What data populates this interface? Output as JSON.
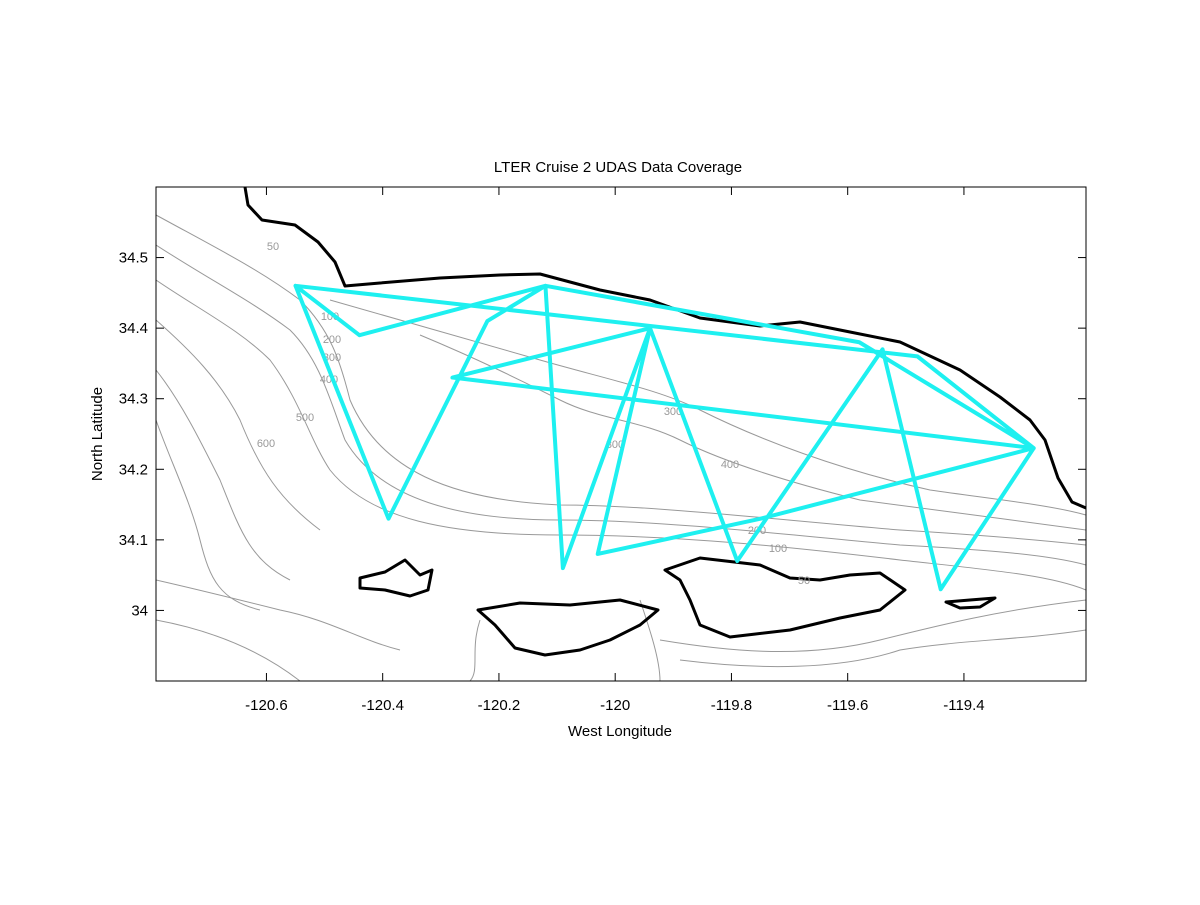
{
  "chart_data": {
    "type": "line",
    "title": "LTER Cruise 2 UDAS Data Coverage",
    "x_label": "West Longitude",
    "y_label": "North Latitude",
    "xlim": [
      -120.79,
      -119.19
    ],
    "ylim": [
      33.9,
      34.6
    ],
    "xticks": [
      -120.6,
      -120.4,
      -120.2,
      -120,
      -119.8,
      -119.6,
      -119.4
    ],
    "yticks": [
      34,
      34.1,
      34.2,
      34.3,
      34.4,
      34.5
    ],
    "contour_labels": [
      "50",
      "100",
      "200",
      "300",
      "400",
      "500",
      "600",
      "300",
      "300",
      "400",
      "200",
      "100",
      "50"
    ],
    "series": [
      {
        "color": "#1ef0f0",
        "x": [
          -120.55,
          -120.39,
          -120.22,
          -120.12,
          -120.09,
          -119.94,
          -119.79,
          -119.54,
          -119.44,
          -119.28,
          -119.48,
          -120.12,
          -120.55,
          -120.44,
          -120.12,
          -119.58,
          -119.28,
          -120.28,
          -119.94,
          -120.03,
          -119.75,
          -119.28
        ],
        "values": [
          34.46,
          34.13,
          34.41,
          34.46,
          34.06,
          34.4,
          34.07,
          34.37,
          34.03,
          34.23,
          34.36,
          34.42,
          34.46,
          34.39,
          34.46,
          34.38,
          34.23,
          34.33,
          34.4,
          34.08,
          34.13,
          34.23
        ]
      }
    ]
  }
}
